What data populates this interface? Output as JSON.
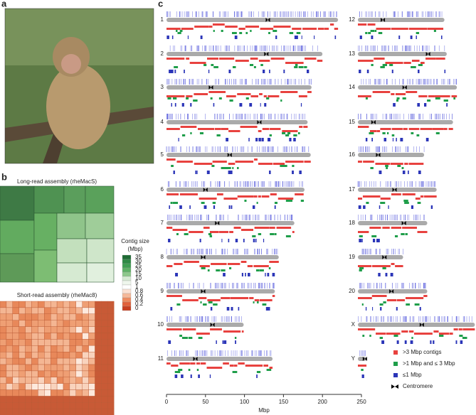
{
  "panels": {
    "a": "a",
    "b": "b",
    "c": "c"
  },
  "panel_b": {
    "long_read_title": "Long-read assembly (rheMacS)",
    "short_read_title": "Short-read assembly (rheMac8)",
    "legend_title": "Contig size",
    "legend_unit": "(Mbp)",
    "legend_values": [
      35,
      30,
      25,
      20,
      15,
      10,
      5,
      1,
      0.8,
      0.6,
      0.4,
      0.2,
      0
    ],
    "legend_colors": [
      "#1e6b34",
      "#2f8a45",
      "#3f9f52",
      "#5fb266",
      "#8cc88a",
      "#d5ead2",
      "#eef6ec",
      "#ffffff",
      "#fbe0d2",
      "#f6b898",
      "#ee8a5e",
      "#e2613a",
      "#c83e20"
    ]
  },
  "panel_c": {
    "xlabel": "Mbp",
    "xlim": [
      0,
      250
    ],
    "xticks": [
      0,
      50,
      100,
      150,
      200,
      250
    ],
    "chromosomes": [
      {
        "name": "1",
        "length": 220,
        "centromere": 130
      },
      {
        "name": "2",
        "length": 200,
        "centromere": 128
      },
      {
        "name": "3",
        "length": 186,
        "centromere": 57
      },
      {
        "name": "4",
        "length": 181,
        "centromere": 119
      },
      {
        "name": "5",
        "length": 185,
        "centromere": 81
      },
      {
        "name": "6",
        "length": 177,
        "centromere": 50
      },
      {
        "name": "7",
        "length": 164,
        "centromere": 65
      },
      {
        "name": "8",
        "length": 144,
        "centromere": 47
      },
      {
        "name": "9",
        "length": 139,
        "centromere": 47
      },
      {
        "name": "10",
        "length": 99,
        "centromere": 59
      },
      {
        "name": "11",
        "length": 136,
        "centromere": 37
      },
      {
        "name": "12",
        "length": 111,
        "centromere": 32
      },
      {
        "name": "13",
        "length": 114,
        "centromere": 90
      },
      {
        "name": "14",
        "length": 127,
        "centromere": 60
      },
      {
        "name": "15",
        "length": 122,
        "centromere": 20
      },
      {
        "name": "16",
        "length": 85,
        "centromere": 26
      },
      {
        "name": "17",
        "length": 101,
        "centromere": 47
      },
      {
        "name": "18",
        "length": 89,
        "centromere": 59
      },
      {
        "name": "19",
        "length": 58,
        "centromere": 34
      },
      {
        "name": "20",
        "length": 89,
        "centromere": 43
      },
      {
        "name": "X",
        "length": 150,
        "centromere": 82
      },
      {
        "name": "Y",
        "length": 11,
        "centromere": 9
      }
    ],
    "legend": [
      {
        "label": ">3 Mbp contigs",
        "color": "#e8423f"
      },
      {
        "label": ">1 Mbp and ≤ 3 Mbp",
        "color": "#1f9e4a"
      },
      {
        "label": "≤1 Mbp",
        "color": "#2b35b8"
      },
      {
        "label": "Centromere",
        "color": "#000000"
      }
    ]
  }
}
